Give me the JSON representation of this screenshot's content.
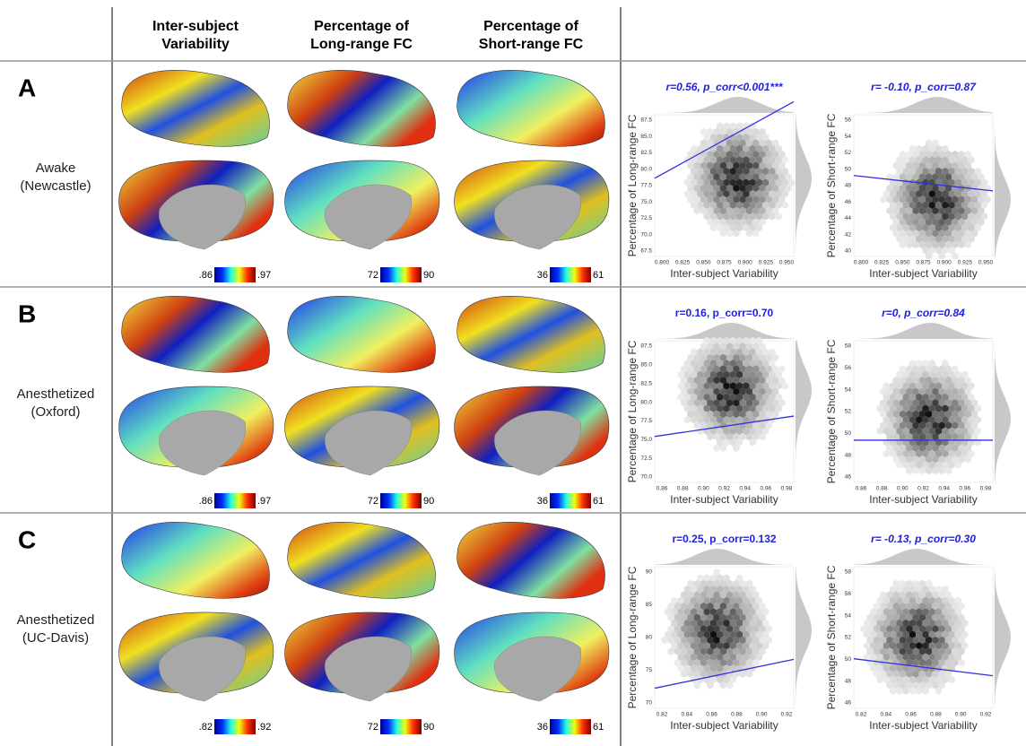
{
  "header": {
    "columns": [
      [
        "Inter-subject",
        "Variability"
      ],
      [
        "Percentage of",
        "Long-range FC"
      ],
      [
        "Percentage of",
        "Short-range FC"
      ]
    ]
  },
  "rows": [
    {
      "letter": "A",
      "label": [
        "Awake",
        "(Newcastle)"
      ],
      "colorbars": [
        [
          ".86",
          ".97"
        ],
        [
          "72",
          "90"
        ],
        [
          "36",
          "61"
        ]
      ],
      "plots": [
        {
          "title": "r=0.56, p_corr<0.001***",
          "ylabel": "Percentage of Long-range FC",
          "xlabel": "Inter-subject Variability",
          "xticks": [
            "0.800",
            "0.825",
            "0.850",
            "0.875",
            "0.900",
            "0.925",
            "0.950"
          ],
          "yticks": [
            "67.5",
            "70.0",
            "72.5",
            "75.0",
            "77.5",
            "80.0",
            "82.5",
            "85.0",
            "87.5"
          ]
        },
        {
          "title": "r= -0.10, p_corr=0.87",
          "ylabel": "Percentage of Short-range FC",
          "xlabel": "Inter-subject Variability",
          "xticks": [
            "0.800",
            "0.825",
            "0.850",
            "0.875",
            "0.900",
            "0.925",
            "0.950"
          ],
          "yticks": [
            "40",
            "42",
            "44",
            "46",
            "48",
            "50",
            "52",
            "54",
            "56"
          ]
        }
      ]
    },
    {
      "letter": "B",
      "label": [
        "Anesthetized",
        "(Oxford)"
      ],
      "colorbars": [
        [
          ".86",
          ".97"
        ],
        [
          "72",
          "90"
        ],
        [
          "36",
          "61"
        ]
      ],
      "plots": [
        {
          "title": "r=0.16, p_corr=0.70",
          "ylabel": "Percentage of Long-range FC",
          "xlabel": "Inter-subject Variability",
          "xticks": [
            "0.86",
            "0.88",
            "0.90",
            "0.92",
            "0.94",
            "0.96",
            "0.98"
          ],
          "yticks": [
            "70.0",
            "72.5",
            "75.0",
            "77.5",
            "80.0",
            "82.5",
            "85.0",
            "87.5"
          ]
        },
        {
          "title": "r=0, p_corr=0.84",
          "ylabel": "Percentage of Short-range FC",
          "xlabel": "Inter-subject Variability",
          "xticks": [
            "0.86",
            "0.88",
            "0.90",
            "0.92",
            "0.94",
            "0.96",
            "0.98"
          ],
          "yticks": [
            "46",
            "48",
            "50",
            "52",
            "54",
            "56",
            "58"
          ]
        }
      ]
    },
    {
      "letter": "C",
      "label": [
        "Anesthetized",
        "(UC-Davis)"
      ],
      "colorbars": [
        [
          ".82",
          ".92"
        ],
        [
          "72",
          "90"
        ],
        [
          "36",
          "61"
        ]
      ],
      "plots": [
        {
          "title": "r=0.25, p_corr=0.132",
          "ylabel": "Percentage of Long-range FC",
          "xlabel": "Inter-subject Variability",
          "xticks": [
            "0.82",
            "0.84",
            "0.86",
            "0.88",
            "0.90",
            "0.92"
          ],
          "yticks": [
            "70",
            "75",
            "80",
            "85",
            "90"
          ]
        },
        {
          "title": "r= -0.13, p_corr=0.30",
          "ylabel": "Percentage of Short-range FC",
          "xlabel": "Inter-subject Variability",
          "xticks": [
            "0.82",
            "0.84",
            "0.86",
            "0.88",
            "0.90",
            "0.92"
          ],
          "yticks": [
            "46",
            "48",
            "50",
            "52",
            "54",
            "56",
            "58"
          ]
        }
      ]
    }
  ]
}
